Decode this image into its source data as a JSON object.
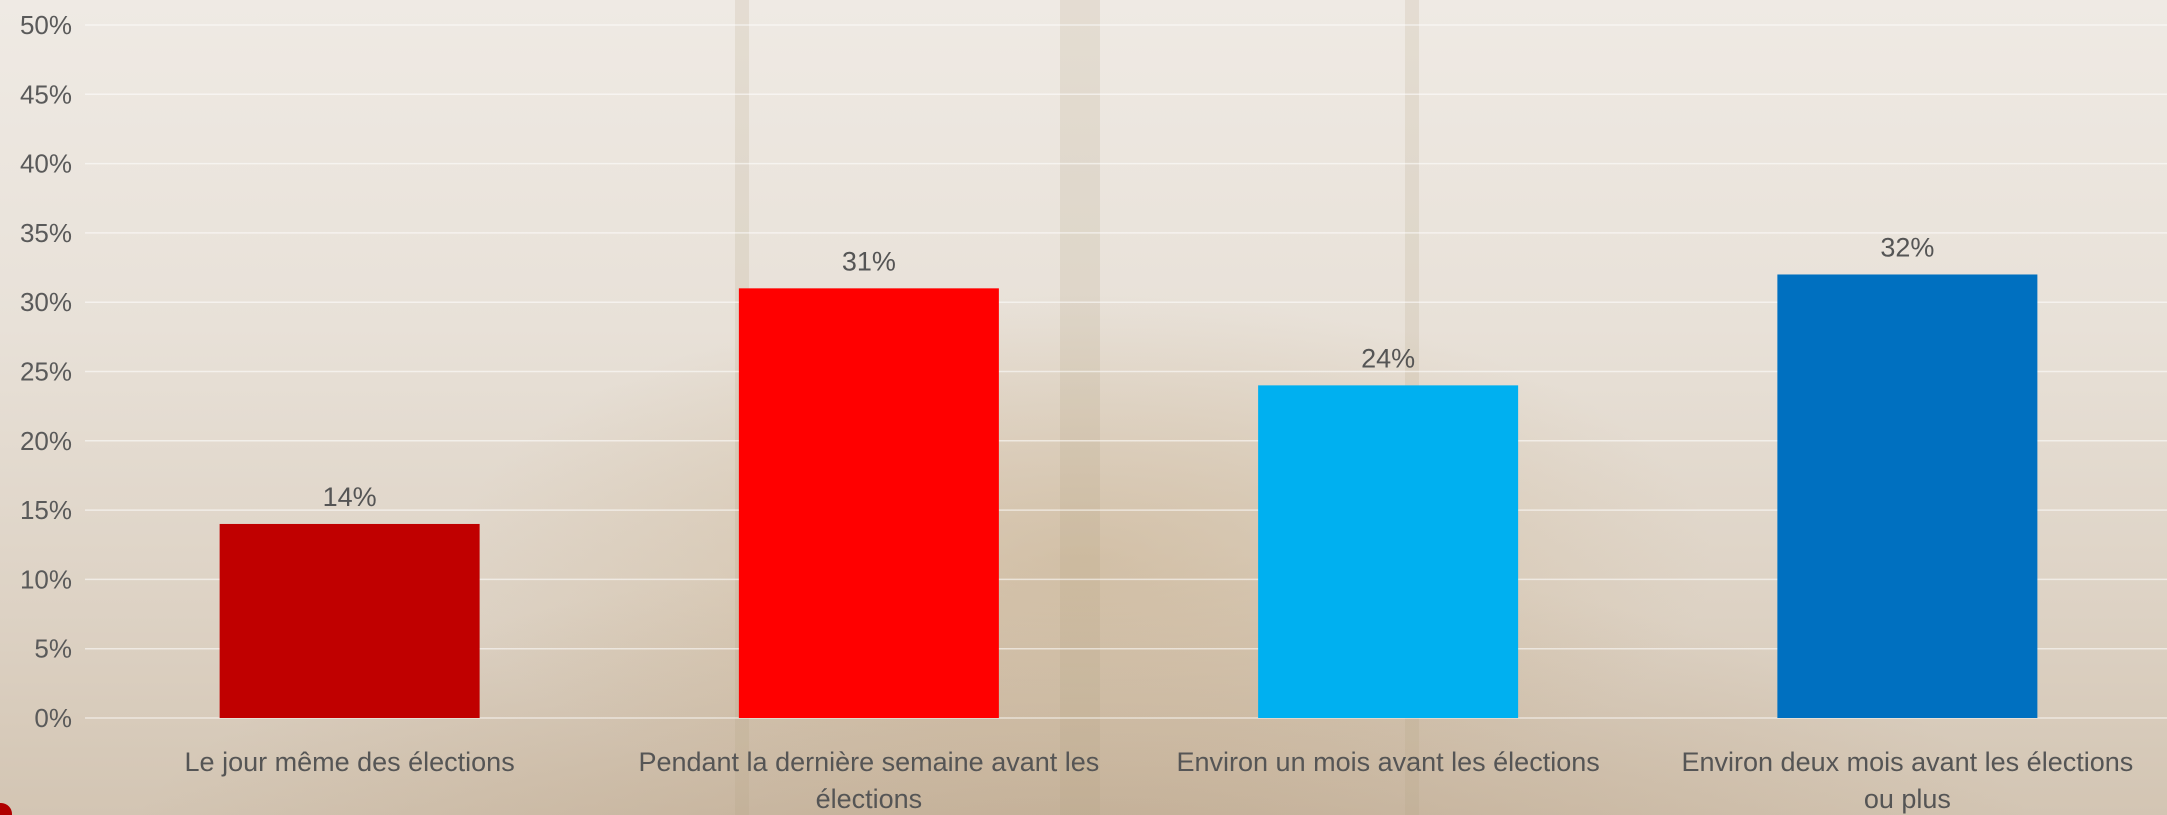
{
  "chart_data": {
    "type": "bar",
    "categories": [
      "Le jour même des élections",
      "Pendant la dernière semaine avant les élections",
      "Environ un mois avant les élections",
      "Environ deux mois avant les élections ou plus"
    ],
    "category_lines": [
      [
        "Le jour même des élections"
      ],
      [
        "Pendant la dernière semaine avant les",
        "élections"
      ],
      [
        "Environ un mois avant les élections"
      ],
      [
        "Environ deux mois avant les élections",
        "ou plus"
      ]
    ],
    "values": [
      14,
      31,
      24,
      32
    ],
    "value_labels": [
      "14%",
      "31%",
      "24%",
      "32%"
    ],
    "colors": [
      "#c00000",
      "#ff0000",
      "#00b0f0",
      "#0070c0"
    ],
    "ylim": [
      0,
      50
    ],
    "ytick_values": [
      0,
      5,
      10,
      15,
      20,
      25,
      30,
      35,
      40,
      45,
      50
    ],
    "ytick_labels": [
      "0%",
      "5%",
      "10%",
      "15%",
      "20%",
      "25%",
      "30%",
      "35%",
      "40%",
      "45%",
      "50%"
    ],
    "grid": true,
    "title": "",
    "xlabel": "",
    "ylabel": ""
  }
}
